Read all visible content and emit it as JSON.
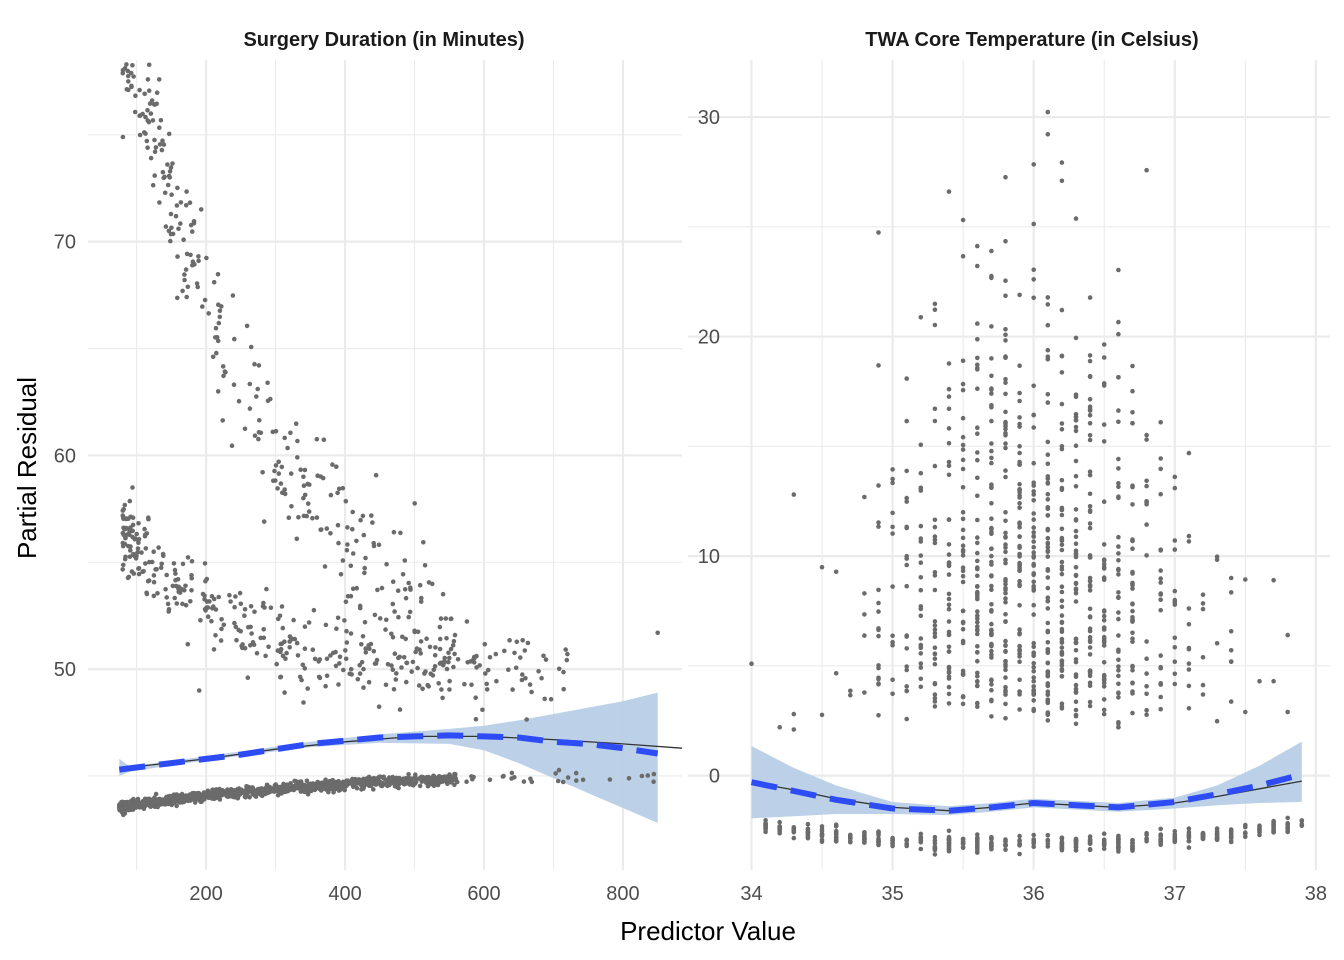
{
  "chart_data": {
    "type": "scatter",
    "ylabel": "Partial Residual",
    "xlabel": "Predictor Value",
    "colors": {
      "points": "#6b6b6b",
      "smooth": "#2d4cf5",
      "ci_band": "#b8cfe6",
      "fit_line": "#333333",
      "grid": "#ebebeb"
    },
    "panels": [
      {
        "title": "Surgery Duration (in Minutes)",
        "xlim": [
          30,
          885
        ],
        "ylim": [
          40.6,
          78.5
        ],
        "x_ticks": [
          200,
          400,
          600,
          800
        ],
        "x_tick_labels": [
          "200",
          "400",
          "600",
          "800"
        ],
        "x_minor": [
          100,
          300,
          500,
          700
        ],
        "y_ticks": [
          50,
          60,
          70
        ],
        "y_tick_labels": [
          "50",
          "60",
          "70"
        ],
        "y_minor": [
          45,
          55,
          65,
          75
        ],
        "clusters": [
          {
            "name": "upper-band",
            "n": 330,
            "x_range": [
              80,
              560
            ],
            "curve": "decay",
            "a": 47.5,
            "b": 33,
            "k": 0.0042,
            "x0": 80,
            "noise": 1.6
          },
          {
            "name": "middle-band",
            "n": 380,
            "x_range": [
              80,
              720
            ],
            "curve": "decay",
            "a": 49.8,
            "b": 6.5,
            "k": 0.0065,
            "x0": 80,
            "noise": 0.9
          },
          {
            "name": "lower-band",
            "n": 1100,
            "x_range": [
              75,
              560
            ],
            "curve": "quad",
            "c0": 43.55,
            "c1": 0.0045,
            "c2": -3.8e-06,
            "noise": 0.12
          },
          {
            "name": "lower-tail",
            "n": 28,
            "x_range": [
              560,
              850
            ],
            "curve": "flat",
            "c0": 44.9,
            "noise": 0.15
          }
        ],
        "outliers": [
          [
            88,
            77.5
          ],
          [
            88,
            77.1
          ],
          [
            105,
            75.9
          ],
          [
            850,
            51.7
          ],
          [
            720,
            50.7
          ],
          [
            190,
            49.0
          ],
          [
            313,
            48.9
          ],
          [
            372,
            49.2
          ],
          [
            260,
            49.6
          ]
        ],
        "smooth": {
          "x": [
            75,
            150,
            250,
            350,
            450,
            500,
            550,
            600,
            650,
            700,
            750,
            800,
            850
          ],
          "y": [
            45.3,
            45.6,
            46.0,
            46.5,
            46.8,
            46.85,
            46.9,
            46.85,
            46.8,
            46.6,
            46.5,
            46.3,
            46.05
          ]
        },
        "fit": {
          "x": [
            75,
            200,
            300,
            400,
            500,
            600,
            700,
            800,
            885
          ],
          "y": [
            45.35,
            45.8,
            46.25,
            46.6,
            46.85,
            46.85,
            46.7,
            46.5,
            46.3
          ]
        },
        "ci": {
          "x": [
            75,
            90,
            150,
            250,
            350,
            450,
            550,
            600,
            650,
            700,
            750,
            800,
            850
          ],
          "lower": [
            45.0,
            45.2,
            45.5,
            45.95,
            46.35,
            46.55,
            46.5,
            46.2,
            45.6,
            44.9,
            44.2,
            43.5,
            42.8
          ],
          "upper": [
            45.8,
            45.45,
            45.7,
            46.15,
            46.6,
            46.95,
            47.2,
            47.35,
            47.6,
            47.9,
            48.2,
            48.5,
            48.9
          ]
        }
      },
      {
        "title": "TWA Core Temperature (in Celsius)",
        "xlim": [
          33.55,
          38.1
        ],
        "ylim": [
          -4.3,
          32.6
        ],
        "x_ticks": [
          34,
          35,
          36,
          37,
          38
        ],
        "x_tick_labels": [
          "34",
          "35",
          "36",
          "37",
          "38"
        ],
        "x_minor": [
          34.5,
          35.5,
          36.5,
          37.5
        ],
        "y_ticks": [
          0,
          10,
          20,
          30
        ],
        "y_tick_labels": [
          "0",
          "10",
          "20",
          "30"
        ],
        "y_minor": [
          5,
          15,
          25
        ],
        "clusters": [
          {
            "name": "main-cloud",
            "n": 900,
            "x_step": 0.1,
            "x_range": [
              34.5,
              37.6
            ],
            "center": 36.0,
            "spread_x": 0.55,
            "y_min": 2.0,
            "y_scale": 6.5,
            "y_max": 31
          },
          {
            "name": "bottom-band",
            "n": 420,
            "x_step": 0.1,
            "x_range": [
              34.1,
              37.9
            ],
            "curve": "bowl",
            "noise": 0.18
          }
        ],
        "outliers": [
          [
            34.0,
            5.1
          ],
          [
            34.3,
            12.8
          ],
          [
            34.2,
            2.2
          ],
          [
            34.3,
            2.1
          ],
          [
            34.3,
            2.8
          ],
          [
            37.8,
            6.4
          ],
          [
            37.8,
            2.9
          ],
          [
            37.6,
            4.3
          ],
          [
            37.7,
            4.3
          ],
          [
            37.7,
            8.9
          ],
          [
            37.5,
            2.9
          ],
          [
            37.4,
            5.2
          ],
          [
            37.4,
            9.0
          ]
        ],
        "smooth": {
          "x": [
            34.0,
            34.3,
            34.6,
            35.0,
            35.4,
            35.7,
            36.0,
            36.3,
            36.6,
            37.0,
            37.3,
            37.6,
            37.9
          ],
          "y": [
            -0.3,
            -0.7,
            -1.1,
            -1.5,
            -1.6,
            -1.45,
            -1.25,
            -1.35,
            -1.45,
            -1.2,
            -0.85,
            -0.45,
            0.05
          ]
        },
        "fit": {
          "x": [
            34.0,
            34.3,
            34.6,
            35.0,
            35.4,
            35.7,
            36.0,
            36.3,
            36.6,
            37.0,
            37.3,
            37.6,
            37.9
          ],
          "y": [
            -0.3,
            -0.65,
            -1.05,
            -1.45,
            -1.6,
            -1.45,
            -1.25,
            -1.35,
            -1.45,
            -1.25,
            -0.95,
            -0.6,
            -0.25
          ]
        },
        "ci": {
          "x": [
            34.0,
            34.3,
            34.6,
            35.0,
            35.4,
            35.7,
            36.0,
            36.3,
            36.6,
            37.0,
            37.3,
            37.6,
            37.9
          ],
          "lower": [
            -1.95,
            -1.85,
            -1.75,
            -1.75,
            -1.8,
            -1.65,
            -1.45,
            -1.55,
            -1.65,
            -1.5,
            -1.35,
            -1.25,
            -1.2
          ],
          "upper": [
            1.35,
            0.35,
            -0.45,
            -1.2,
            -1.4,
            -1.25,
            -1.05,
            -1.15,
            -1.25,
            -1.0,
            -0.45,
            0.45,
            1.55
          ]
        }
      }
    ]
  }
}
